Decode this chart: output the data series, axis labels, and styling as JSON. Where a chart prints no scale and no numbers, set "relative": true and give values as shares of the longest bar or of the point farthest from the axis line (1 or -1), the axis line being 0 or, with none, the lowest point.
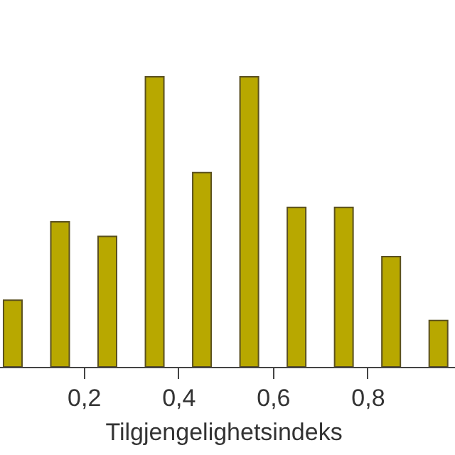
{
  "chart_data": {
    "type": "bar",
    "relative": true,
    "xlabel": "Tilgjengelighetsindeks",
    "x": [
      0.05,
      0.15,
      0.25,
      0.35,
      0.45,
      0.55,
      0.65,
      0.75,
      0.85,
      0.95
    ],
    "values": [
      0.23,
      0.5,
      0.45,
      1,
      0.67,
      1,
      0.55,
      0.55,
      0.38,
      0.16
    ],
    "color": "#b8a800",
    "xlim": [
      0.02,
      0.97
    ],
    "xticks": [
      {
        "value": 0.2,
        "label": "0,2"
      },
      {
        "value": 0.4,
        "label": "0,4"
      },
      {
        "value": 0.6,
        "label": "0,6"
      },
      {
        "value": 0.8,
        "label": "0,8"
      }
    ],
    "grid": false
  }
}
